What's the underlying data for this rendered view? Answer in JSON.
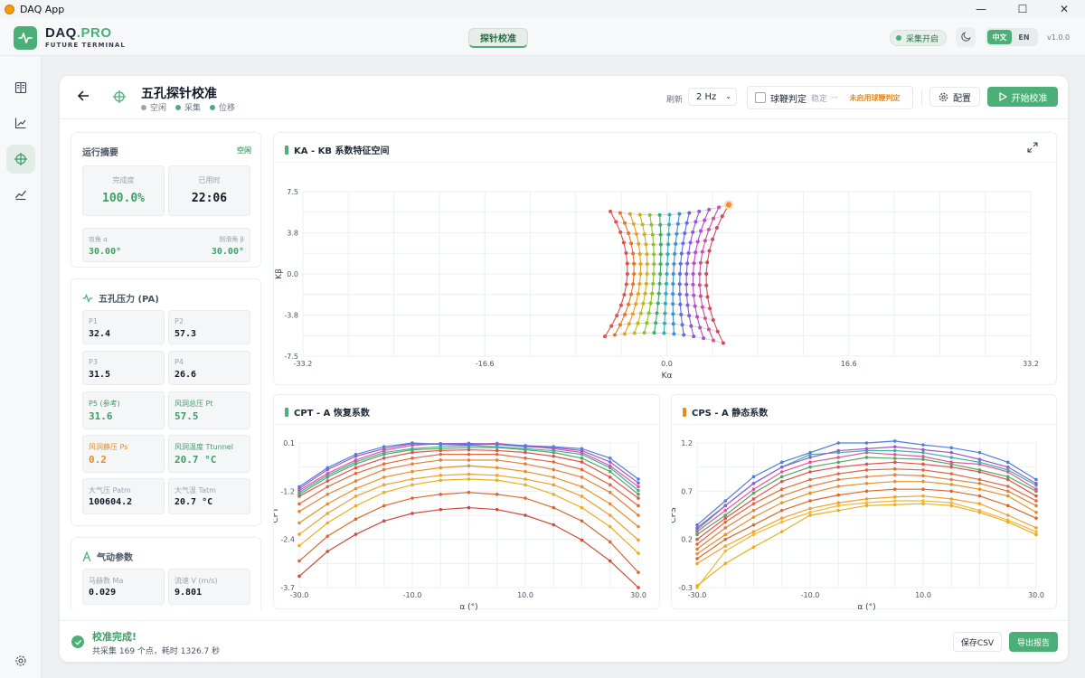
{
  "window": {
    "title": "DAQ App",
    "controls": [
      "—",
      "☐",
      "✕"
    ]
  },
  "header": {
    "brand": "DAQ",
    "brand_accent": ".PRO",
    "subtitle": "FUTURE TERMINAL",
    "center_tab": "探针校准",
    "collect_status": "采集开启",
    "lang_zh": "中文",
    "lang_en": "EN",
    "version": "v1.0.0"
  },
  "sidebar": {
    "items": [
      "book-icon",
      "trend-icon",
      "target-icon",
      "chart-line-icon"
    ],
    "active": 2,
    "bottom": "settings-icon"
  },
  "page": {
    "title": "五孔探针校准",
    "status": [
      {
        "label": "空闲",
        "color": "#9ca3af"
      },
      {
        "label": "采集",
        "color": "#4caf78"
      },
      {
        "label": "位移",
        "color": "#4caf78"
      }
    ],
    "refresh_label": "刷新",
    "refresh_value": "2 Hz",
    "stall_label": "球鞭判定",
    "stable_label": "稳定",
    "stable_value": "--",
    "stall_warning": "未启用球鞭判定",
    "config_label": "配置",
    "start_label": "开始校准"
  },
  "summary": {
    "title": "运行摘要",
    "state": "空闲",
    "completion_label": "完成度",
    "completion_value": "100.0%",
    "elapsed_label": "已用时",
    "elapsed_value": "22:06",
    "alpha_label": "攻角 α",
    "alpha_value": "30.00°",
    "beta_label": "侧滑角 β",
    "beta_value": "30.00°"
  },
  "pressure": {
    "title": "五孔压力 (PA)",
    "cells": [
      {
        "label": "P1",
        "value": "32.4",
        "style": ""
      },
      {
        "label": "P2",
        "value": "57.3",
        "style": ""
      },
      {
        "label": "P3",
        "value": "31.5",
        "style": ""
      },
      {
        "label": "P4",
        "value": "26.6",
        "style": ""
      },
      {
        "label": "P5 (参考)",
        "value": "31.6",
        "style": "green"
      },
      {
        "label": "风洞总压 Pt",
        "value": "57.5",
        "style": "green"
      },
      {
        "label": "风洞静压 Ps",
        "value": "0.2",
        "style": "orange"
      },
      {
        "label": "风洞温度 Ttunnel",
        "value": "20.7 °C",
        "style": "green"
      },
      {
        "label": "大气压 Patm",
        "value": "100604.2",
        "style": ""
      },
      {
        "label": "大气温 Tatm",
        "value": "20.7 °C",
        "style": ""
      }
    ]
  },
  "aero": {
    "title": "气动参数",
    "cells": [
      {
        "label": "马赫数 Ma",
        "value": "0.029"
      },
      {
        "label": "流速 V (m/s)",
        "value": "9.801"
      }
    ]
  },
  "footer": {
    "title": "校准完成!",
    "detail": "共采集 169 个点，耗时 1326.7 秒",
    "csv_label": "保存CSV",
    "report_label": "导出报告"
  },
  "chart_data": [
    {
      "type": "scatter",
      "title": "KA - KB 系数特征空间",
      "accent": "#4caf78",
      "xlabel": "Kα",
      "ylabel": "Kβ",
      "xlim": [
        -33.2,
        33.2
      ],
      "ylim": [
        -7.5,
        7.5
      ],
      "xticks": [
        "-33.2",
        "-16.6",
        "0.0",
        "16.6",
        "33.2"
      ],
      "yticks": [
        "7.5",
        "3.8",
        "0.0",
        "-3.8",
        "-7.5"
      ],
      "grid": true,
      "note": "13 × 13 calibration grid (α, β from -30° to 30°); one coloured series per α"
    },
    {
      "type": "line",
      "title": "CPT - A 恢复系数",
      "accent": "#4caf78",
      "xlabel": "α (°)",
      "ylabel": "CPT",
      "xlim": [
        -30,
        30
      ],
      "ylim": [
        -3.7,
        0.1
      ],
      "xticks": [
        "-30.0",
        "-10.0",
        "10.0",
        "30.0"
      ],
      "yticks": [
        "0.1",
        "-1.2",
        "-2.4",
        "-3.7"
      ],
      "x": [
        -30,
        -25,
        -20,
        -15,
        -10,
        -5,
        0,
        5,
        10,
        15,
        20,
        25,
        30
      ],
      "series": [
        {
          "color": "#4f7fe0",
          "values": [
            -1.05,
            -0.55,
            -0.2,
            0.0,
            0.1,
            0.06,
            0.05,
            0.07,
            0.03,
            0.0,
            -0.05,
            -0.3,
            -0.85
          ]
        },
        {
          "color": "#9b59d0",
          "values": [
            -1.1,
            -0.6,
            -0.25,
            -0.05,
            0.08,
            0.08,
            0.09,
            0.06,
            0.0,
            -0.02,
            -0.1,
            -0.4,
            -0.95
          ]
        },
        {
          "color": "#e0559a",
          "values": [
            -1.15,
            -0.7,
            -0.35,
            -0.1,
            0.04,
            0.08,
            0.07,
            0.09,
            0.02,
            -0.05,
            -0.15,
            -0.5,
            -1.05
          ]
        },
        {
          "color": "#3bb0a6",
          "values": [
            -1.2,
            -0.75,
            -0.4,
            -0.15,
            -0.05,
            0.0,
            0.03,
            0.0,
            -0.05,
            -0.1,
            -0.2,
            -0.55,
            -1.15
          ]
        },
        {
          "color": "#5aa55a",
          "values": [
            -1.25,
            -0.8,
            -0.45,
            -0.2,
            -0.08,
            -0.05,
            -0.02,
            -0.02,
            -0.08,
            -0.15,
            -0.3,
            -0.65,
            -1.25
          ]
        },
        {
          "color": "#e05050",
          "values": [
            -1.3,
            -0.9,
            -0.55,
            -0.3,
            -0.15,
            -0.1,
            -0.08,
            -0.1,
            -0.15,
            -0.25,
            -0.4,
            -0.8,
            -1.35
          ]
        },
        {
          "color": "#e06a3a",
          "values": [
            -1.5,
            -1.05,
            -0.7,
            -0.45,
            -0.3,
            -0.2,
            -0.2,
            -0.2,
            -0.3,
            -0.4,
            -0.6,
            -1.0,
            -1.55
          ]
        },
        {
          "color": "#e0803a",
          "values": [
            -1.7,
            -1.25,
            -0.9,
            -0.6,
            -0.45,
            -0.35,
            -0.35,
            -0.35,
            -0.45,
            -0.6,
            -0.8,
            -1.2,
            -1.8
          ]
        },
        {
          "color": "#e88f2a",
          "values": [
            -2.0,
            -1.5,
            -1.1,
            -0.8,
            -0.65,
            -0.55,
            -0.5,
            -0.55,
            -0.65,
            -0.8,
            -1.05,
            -1.5,
            -2.1
          ]
        },
        {
          "color": "#f0a030",
          "values": [
            -2.3,
            -1.75,
            -1.3,
            -1.0,
            -0.85,
            -0.75,
            -0.72,
            -0.75,
            -0.85,
            -1.0,
            -1.3,
            -1.8,
            -2.45
          ]
        },
        {
          "color": "#e8b020",
          "values": [
            -2.6,
            -2.0,
            -1.55,
            -1.2,
            -1.0,
            -0.88,
            -0.85,
            -0.88,
            -1.0,
            -1.25,
            -1.6,
            -2.1,
            -2.8
          ]
        },
        {
          "color": "#d86a30",
          "values": [
            -3.0,
            -2.35,
            -1.9,
            -1.55,
            -1.35,
            -1.25,
            -1.2,
            -1.25,
            -1.35,
            -1.6,
            -1.95,
            -2.5,
            -3.3
          ]
        },
        {
          "color": "#d04a3a",
          "values": [
            -3.4,
            -2.75,
            -2.3,
            -1.95,
            -1.75,
            -1.65,
            -1.6,
            -1.65,
            -1.8,
            -2.05,
            -2.45,
            -3.0,
            -3.7
          ]
        }
      ]
    },
    {
      "type": "line",
      "title": "CPS - A 静态系数",
      "accent": "#ea8a1e",
      "xlabel": "α (°)",
      "ylabel": "CPS",
      "xlim": [
        -30,
        30
      ],
      "ylim": [
        -0.3,
        1.2
      ],
      "xticks": [
        "-30.0",
        "-10.0",
        "10.0",
        "30.0"
      ],
      "yticks": [
        "1.2",
        "0.7",
        "0.2",
        "-0.3"
      ],
      "x": [
        -30,
        -25,
        -20,
        -15,
        -10,
        -5,
        0,
        5,
        10,
        15,
        20,
        25,
        30
      ],
      "series": [
        {
          "color": "#4f7fe0",
          "values": [
            0.35,
            0.6,
            0.85,
            1.0,
            1.1,
            1.2,
            1.2,
            1.22,
            1.18,
            1.15,
            1.1,
            1.0,
            0.82
          ]
        },
        {
          "color": "#9b59d0",
          "values": [
            0.32,
            0.55,
            0.78,
            0.95,
            1.05,
            1.12,
            1.14,
            1.16,
            1.13,
            1.1,
            1.03,
            0.95,
            0.78
          ]
        },
        {
          "color": "#3bb0a6",
          "values": [
            0.3,
            0.55,
            0.78,
            0.95,
            1.08,
            1.1,
            1.12,
            1.12,
            1.1,
            1.05,
            1.0,
            0.92,
            0.76
          ]
        },
        {
          "color": "#e0559a",
          "values": [
            0.28,
            0.5,
            0.72,
            0.9,
            1.0,
            1.05,
            1.1,
            1.08,
            1.06,
            1.0,
            0.98,
            0.9,
            0.72
          ]
        },
        {
          "color": "#5aa55a",
          "values": [
            0.25,
            0.45,
            0.68,
            0.85,
            0.95,
            1.0,
            1.05,
            1.04,
            1.03,
            0.98,
            0.92,
            0.85,
            0.7
          ]
        },
        {
          "color": "#e05050",
          "values": [
            0.2,
            0.42,
            0.62,
            0.8,
            0.9,
            0.95,
            0.98,
            1.0,
            0.98,
            0.95,
            0.9,
            0.82,
            0.65
          ]
        },
        {
          "color": "#e06a3a",
          "values": [
            0.15,
            0.38,
            0.57,
            0.72,
            0.82,
            0.88,
            0.92,
            0.93,
            0.92,
            0.88,
            0.82,
            0.75,
            0.6
          ]
        },
        {
          "color": "#e0803a",
          "values": [
            0.1,
            0.32,
            0.5,
            0.65,
            0.75,
            0.82,
            0.85,
            0.87,
            0.86,
            0.82,
            0.78,
            0.7,
            0.55
          ]
        },
        {
          "color": "#e88f2a",
          "values": [
            0.05,
            0.25,
            0.43,
            0.58,
            0.68,
            0.75,
            0.78,
            0.8,
            0.8,
            0.77,
            0.72,
            0.65,
            0.48
          ]
        },
        {
          "color": "#d86a30",
          "values": [
            0.0,
            0.2,
            0.35,
            0.5,
            0.6,
            0.66,
            0.7,
            0.72,
            0.72,
            0.7,
            0.65,
            0.55,
            0.42
          ]
        },
        {
          "color": "#f0a030",
          "values": [
            -0.05,
            0.13,
            0.28,
            0.42,
            0.52,
            0.58,
            0.62,
            0.64,
            0.65,
            0.62,
            0.57,
            0.45,
            0.32
          ]
        },
        {
          "color": "#e8b020",
          "values": [
            -0.28,
            -0.05,
            0.12,
            0.28,
            0.45,
            0.5,
            0.55,
            0.56,
            0.57,
            0.55,
            0.48,
            0.38,
            0.25
          ]
        },
        {
          "color": "#f2b83a",
          "values": [
            -0.3,
            0.08,
            0.25,
            0.38,
            0.48,
            0.55,
            0.58,
            0.6,
            0.6,
            0.58,
            0.5,
            0.4,
            0.28
          ]
        }
      ]
    }
  ]
}
